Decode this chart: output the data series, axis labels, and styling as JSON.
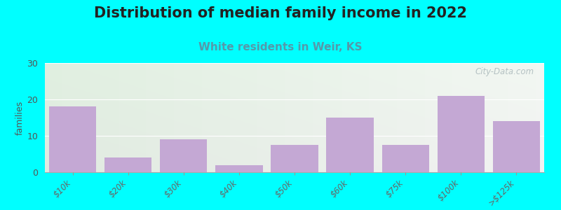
{
  "title": "Distribution of median family income in 2022",
  "subtitle": "White residents in Weir, KS",
  "ylabel": "families",
  "categories": [
    "$10k",
    "$20k",
    "$30k",
    "$40k",
    "$50k",
    "$60k",
    "$75k",
    "$100k",
    ">$125k"
  ],
  "values": [
    18,
    4,
    9,
    2,
    7.5,
    15,
    7.5,
    21,
    14
  ],
  "bar_color": "#c4a8d4",
  "background_color": "#00ffff",
  "plot_bg_left_top": "#d8eedd",
  "plot_bg_left_bottom": "#d8eedd",
  "plot_bg_right_top": "#eef5f0",
  "plot_bg_right_bottom": "#eef5f0",
  "ylim": [
    0,
    30
  ],
  "yticks": [
    0,
    10,
    20,
    30
  ],
  "title_fontsize": 15,
  "subtitle_fontsize": 11,
  "subtitle_color": "#5599aa",
  "ylabel_fontsize": 9,
  "watermark": "City-Data.com",
  "grid_color": "#ffffff"
}
